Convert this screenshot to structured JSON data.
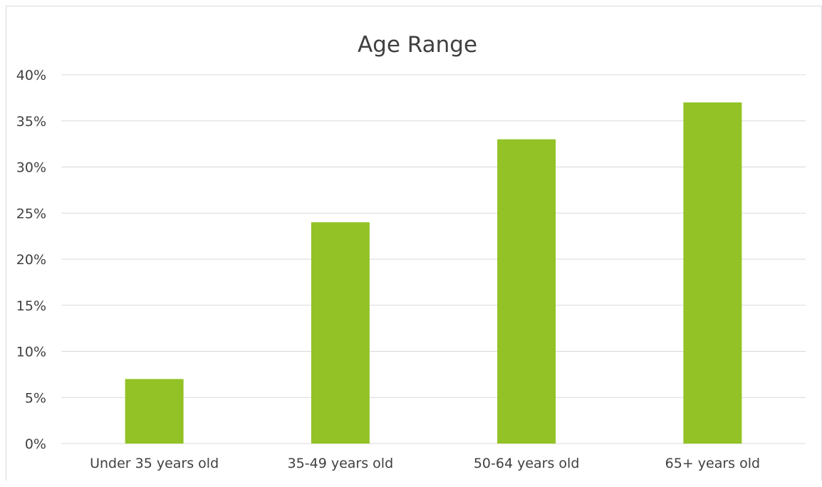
{
  "chart_data": {
    "type": "bar",
    "title": "Age Range",
    "xlabel": "",
    "ylabel": "",
    "categories": [
      "Under 35 years old",
      "35-49 years old",
      "50-64 years old",
      "65+ years old"
    ],
    "values": [
      7,
      24,
      33,
      37
    ],
    "value_unit": "%",
    "ylim": [
      0,
      40
    ],
    "y_ticks": [
      "0%",
      "5%",
      "10%",
      "15%",
      "20%",
      "25%",
      "30%",
      "35%",
      "40%"
    ],
    "grid": true,
    "legend": "none",
    "bar_color": "#92c226",
    "grid_color": "#d9d9d9",
    "text_color": "#404040"
  }
}
